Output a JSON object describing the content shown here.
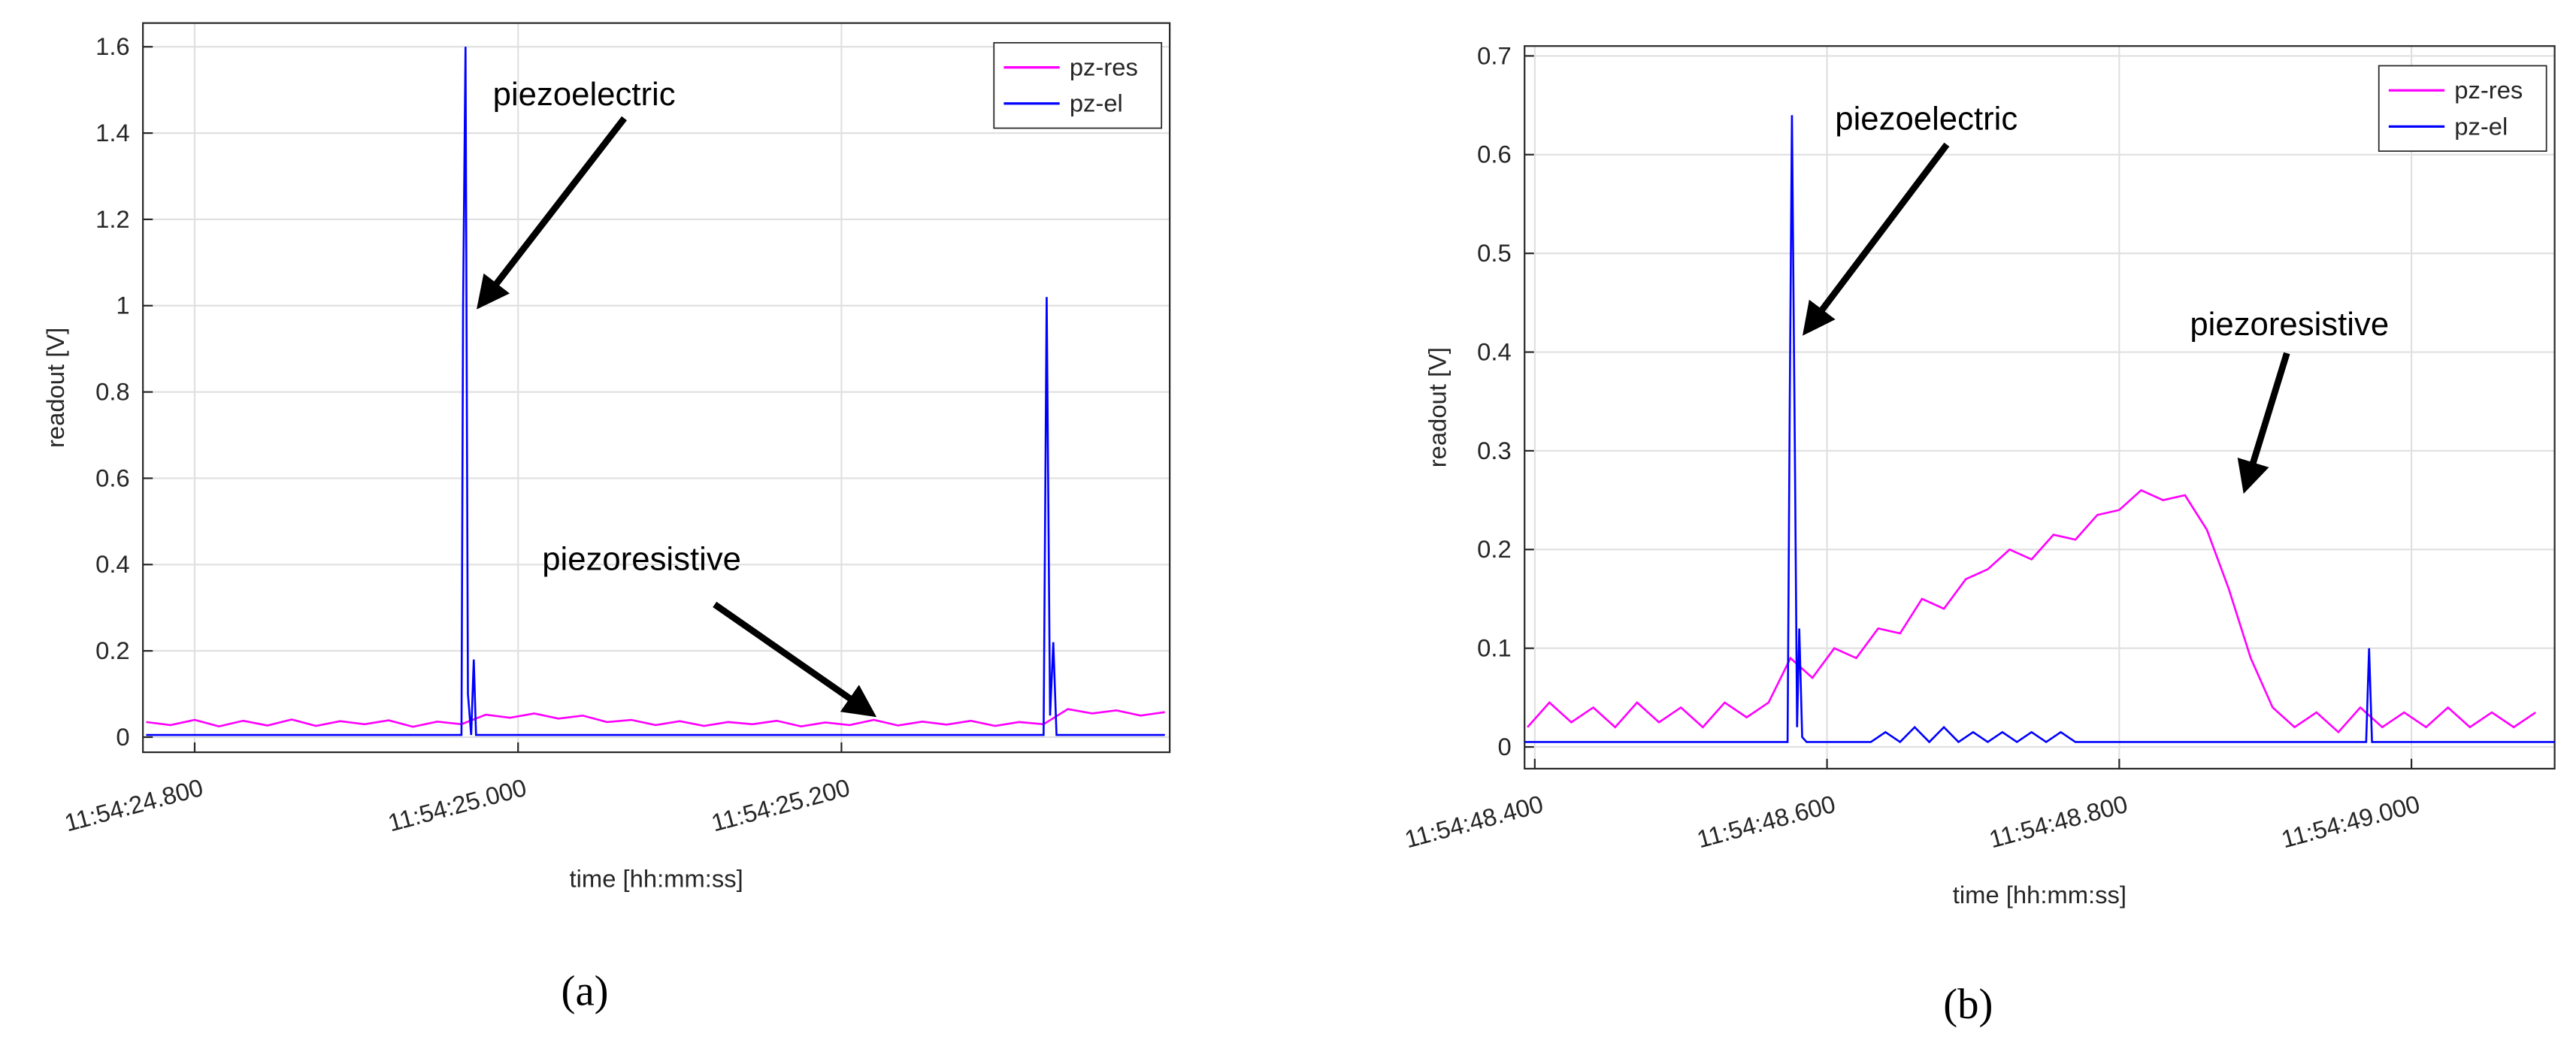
{
  "chart_data": [
    {
      "type": "line",
      "subcaption": "(a)",
      "xlabel": "time [hh:mm:ss]",
      "ylabel": "readout [V]",
      "annotations": [
        "piezoelectric",
        "piezoresistive"
      ],
      "xlim": [
        "11:54:24.768",
        "11:54:25.403"
      ],
      "xticks": [
        "11:54:24.800",
        "11:54:25.000",
        "11:54:25.200"
      ],
      "ylim": [
        -0.035,
        1.655
      ],
      "yticks": [
        0,
        0.2,
        0.4,
        0.6,
        0.8,
        1,
        1.2,
        1.4,
        1.6
      ],
      "grid": true,
      "legend": "upper right",
      "series": [
        {
          "name": "pz-res",
          "color": "#ff00ff",
          "x": [
            "11:54:24.770",
            "11:54:24.785",
            "11:54:24.800",
            "11:54:24.815",
            "11:54:24.830",
            "11:54:24.845",
            "11:54:24.860",
            "11:54:24.875",
            "11:54:24.890",
            "11:54:24.905",
            "11:54:24.920",
            "11:54:24.935",
            "11:54:24.950",
            "11:54:24.965",
            "11:54:24.980",
            "11:54:24.995",
            "11:54:25.010",
            "11:54:25.025",
            "11:54:25.040",
            "11:54:25.055",
            "11:54:25.070",
            "11:54:25.085",
            "11:54:25.100",
            "11:54:25.115",
            "11:54:25.130",
            "11:54:25.145",
            "11:54:25.160",
            "11:54:25.175",
            "11:54:25.190",
            "11:54:25.205",
            "11:54:25.220",
            "11:54:25.235",
            "11:54:25.250",
            "11:54:25.265",
            "11:54:25.280",
            "11:54:25.295",
            "11:54:25.310",
            "11:54:25.325",
            "11:54:25.340",
            "11:54:25.355",
            "11:54:25.370",
            "11:54:25.385",
            "11:54:25.400"
          ],
          "values": [
            0.035,
            0.028,
            0.04,
            0.025,
            0.038,
            0.027,
            0.041,
            0.026,
            0.037,
            0.03,
            0.039,
            0.024,
            0.036,
            0.03,
            0.052,
            0.045,
            0.055,
            0.043,
            0.05,
            0.035,
            0.04,
            0.028,
            0.037,
            0.026,
            0.035,
            0.03,
            0.038,
            0.025,
            0.034,
            0.028,
            0.04,
            0.027,
            0.036,
            0.029,
            0.038,
            0.026,
            0.035,
            0.03,
            0.065,
            0.055,
            0.062,
            0.05,
            0.058
          ]
        },
        {
          "name": "pz-el",
          "color": "#0000ff",
          "x": [
            "11:54:24.770",
            "11:54:24.965",
            "11:54:24.966",
            "11:54:24.9675",
            "11:54:24.969",
            "11:54:24.971",
            "11:54:24.9726",
            "11:54:24.974",
            "11:54:24.976",
            "11:54:25.325",
            "11:54:25.3269",
            "11:54:25.329",
            "11:54:25.331",
            "11:54:25.333",
            "11:54:25.400"
          ],
          "values": [
            0.005,
            0.005,
            1.0,
            1.6,
            0.1,
            0.005,
            0.18,
            0.005,
            0.005,
            0.005,
            1.02,
            0.05,
            0.22,
            0.005,
            0.005
          ]
        }
      ]
    },
    {
      "type": "line",
      "subcaption": "(b)",
      "xlabel": "time [hh:mm:ss]",
      "ylabel": "readout [V]",
      "annotations": [
        "piezoelectric",
        "piezoresistive"
      ],
      "xlim": [
        "11:54:48.393",
        "11:54:49.098"
      ],
      "xticks": [
        "11:54:48.400",
        "11:54:48.600",
        "11:54:48.800",
        "11:54:49.000"
      ],
      "ylim": [
        -0.022,
        0.71
      ],
      "yticks": [
        0,
        0.1,
        0.2,
        0.3,
        0.4,
        0.5,
        0.6,
        0.7
      ],
      "grid": true,
      "legend": "upper right",
      "series": [
        {
          "name": "pz-res",
          "color": "#ff00ff",
          "x": [
            "11:54:48.395",
            "11:54:48.410",
            "11:54:48.425",
            "11:54:48.440",
            "11:54:48.455",
            "11:54:48.470",
            "11:54:48.485",
            "11:54:48.500",
            "11:54:48.515",
            "11:54:48.530",
            "11:54:48.545",
            "11:54:48.560",
            "11:54:48.575",
            "11:54:48.590",
            "11:54:48.605",
            "11:54:48.620",
            "11:54:48.635",
            "11:54:48.650",
            "11:54:48.665",
            "11:54:48.680",
            "11:54:48.695",
            "11:54:48.710",
            "11:54:48.725",
            "11:54:48.740",
            "11:54:48.755",
            "11:54:48.770",
            "11:54:48.785",
            "11:54:48.800",
            "11:54:48.815",
            "11:54:48.830",
            "11:54:48.845",
            "11:54:48.860",
            "11:54:48.875",
            "11:54:48.890",
            "11:54:48.905",
            "11:54:48.920",
            "11:54:48.935",
            "11:54:48.950",
            "11:54:48.965",
            "11:54:48.980",
            "11:54:48.995",
            "11:54:49.010",
            "11:54:49.025",
            "11:54:49.040",
            "11:54:49.055",
            "11:54:49.070",
            "11:54:49.085"
          ],
          "values": [
            0.02,
            0.045,
            0.025,
            0.04,
            0.02,
            0.045,
            0.025,
            0.04,
            0.02,
            0.045,
            0.03,
            0.045,
            0.09,
            0.07,
            0.1,
            0.09,
            0.12,
            0.115,
            0.15,
            0.14,
            0.17,
            0.18,
            0.2,
            0.19,
            0.215,
            0.21,
            0.235,
            0.24,
            0.26,
            0.25,
            0.255,
            0.22,
            0.16,
            0.09,
            0.04,
            0.02,
            0.035,
            0.015,
            0.04,
            0.02,
            0.035,
            0.02,
            0.04,
            0.02,
            0.035,
            0.02,
            0.035
          ]
        },
        {
          "name": "pz-el",
          "color": "#0000ff",
          "x": [
            "11:54:48.393",
            "11:54:48.573",
            "11:54:48.5745",
            "11:54:48.576",
            "11:54:48.578",
            "11:54:48.5795",
            "11:54:48.581",
            "11:54:48.583",
            "11:54:48.586",
            "11:54:48.630",
            "11:54:48.640",
            "11:54:48.650",
            "11:54:48.660",
            "11:54:48.670",
            "11:54:48.680",
            "11:54:48.690",
            "11:54:48.700",
            "11:54:48.710",
            "11:54:48.720",
            "11:54:48.730",
            "11:54:48.740",
            "11:54:48.750",
            "11:54:48.760",
            "11:54:48.770",
            "11:54:48.969",
            "11:54:48.971",
            "11:54:48.973",
            "11:54:49.098"
          ],
          "values": [
            0.005,
            0.005,
            0.35,
            0.64,
            0.3,
            0.02,
            0.12,
            0.01,
            0.005,
            0.005,
            0.015,
            0.005,
            0.02,
            0.005,
            0.02,
            0.005,
            0.015,
            0.005,
            0.015,
            0.005,
            0.015,
            0.005,
            0.015,
            0.005,
            0.005,
            0.1,
            0.005,
            0.005
          ]
        }
      ]
    }
  ]
}
